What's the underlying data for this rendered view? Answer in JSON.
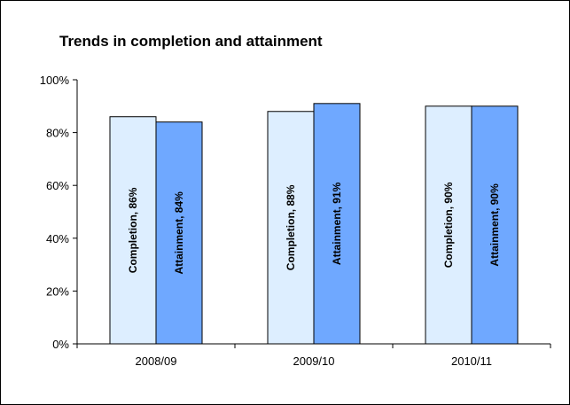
{
  "chart_data": {
    "type": "bar",
    "title": "Trends in completion and attainment",
    "categories": [
      "2008/09",
      "2009/10",
      "2010/11"
    ],
    "series": [
      {
        "name": "Completion",
        "values": [
          86,
          88,
          90
        ],
        "color": "#DDEEFF"
      },
      {
        "name": "Attainment",
        "values": [
          84,
          91,
          90
        ],
        "color": "#6FA8FF"
      }
    ],
    "data_labels": [
      [
        "Completion, 86%",
        "Completion, 88%",
        "Completion, 90%"
      ],
      [
        "Attainment, 84%",
        "Attainment, 91%",
        "Attainment, 90%"
      ]
    ],
    "ylim": [
      0,
      100
    ],
    "yticks": [
      0,
      20,
      40,
      60,
      80,
      100
    ],
    "ytick_labels": [
      "0%",
      "20%",
      "40%",
      "60%",
      "80%",
      "100%"
    ],
    "xlabel": "",
    "ylabel": "",
    "grid": false,
    "legend": "none"
  }
}
